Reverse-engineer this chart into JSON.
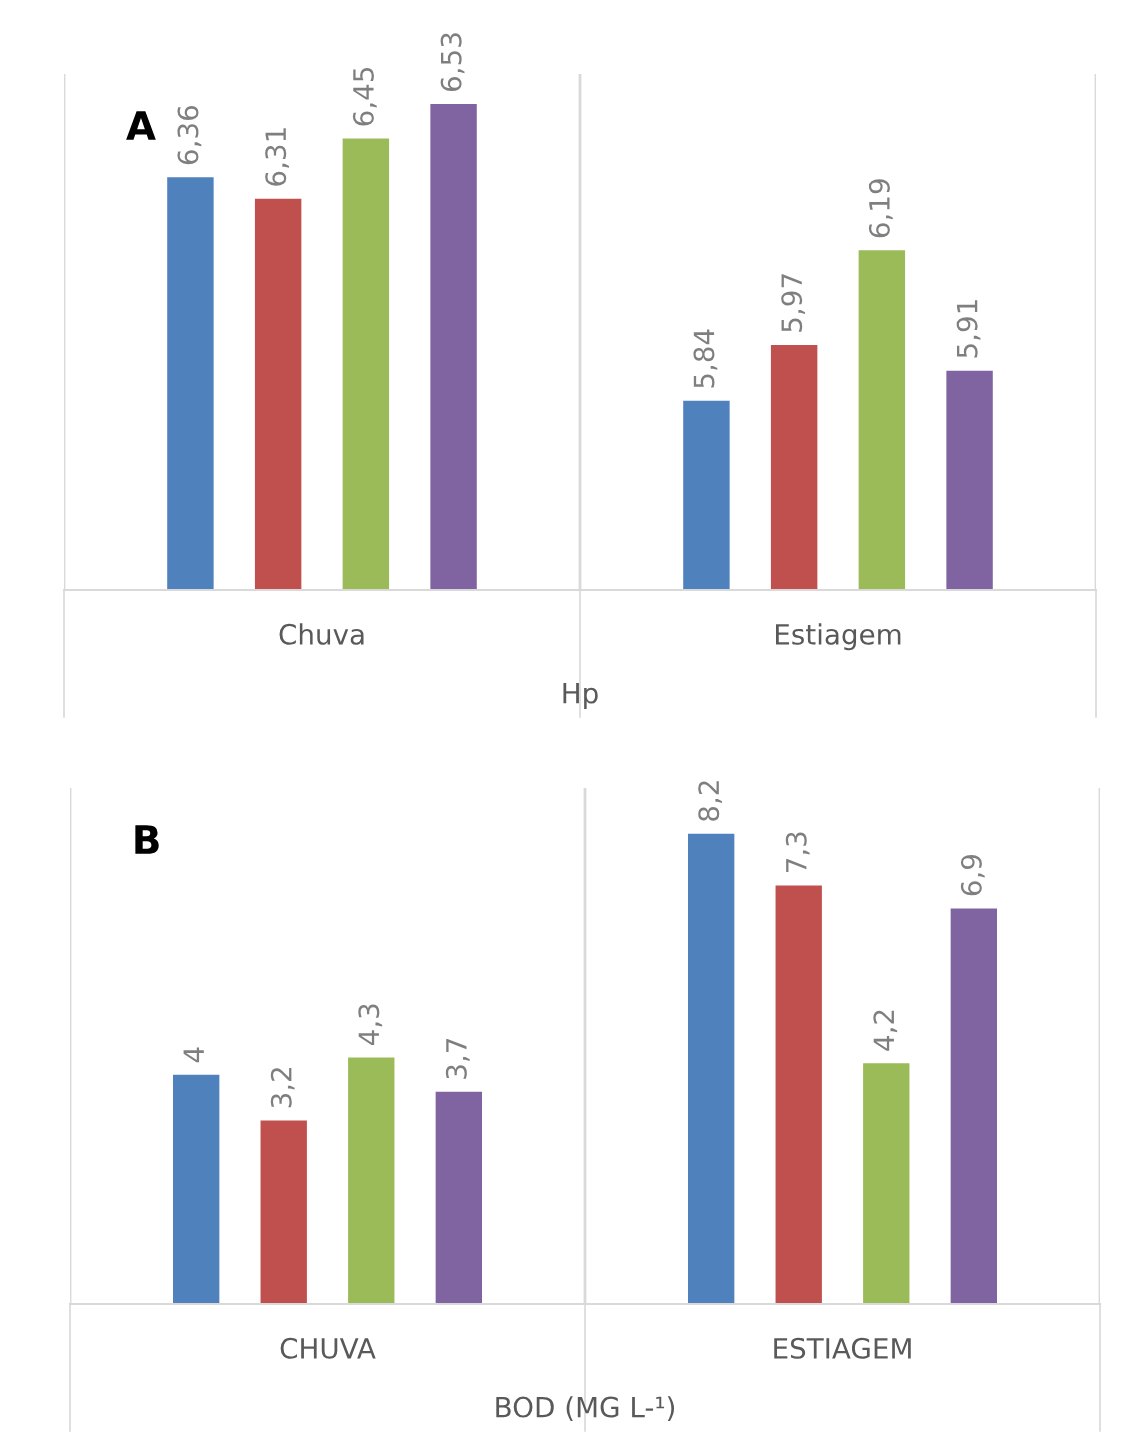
{
  "chart_data": [
    {
      "type": "bar",
      "xlabel": "Hp",
      "annotations": [
        "A"
      ],
      "categories": [
        "Chuva",
        "Estiagem"
      ],
      "ylim": [
        5.4,
        6.6
      ],
      "tick_labels": "x",
      "grid": "x",
      "series": [
        {
          "color": "#4f81bd",
          "values": [
            6.36,
            5.84
          ],
          "value_labels": [
            "6,36",
            "5,84"
          ]
        },
        {
          "color": "#c0504d",
          "values": [
            6.31,
            5.97
          ],
          "value_labels": [
            "6,31",
            "5,97"
          ]
        },
        {
          "color": "#9bbb59",
          "values": [
            6.45,
            6.19
          ],
          "value_labels": [
            "6,45",
            "6,19"
          ]
        },
        {
          "color": "#8064a2",
          "values": [
            6.53,
            5.91
          ],
          "value_labels": [
            "6,53",
            "5,91"
          ]
        }
      ]
    },
    {
      "type": "bar",
      "xlabel": "BOD (MG L-¹)",
      "annotations": [
        "B"
      ],
      "categories": [
        "CHUVA",
        "ESTIAGEM"
      ],
      "ylim": [
        0,
        9
      ],
      "tick_labels": "x",
      "grid": "x",
      "series": [
        {
          "color": "#4f81bd",
          "values": [
            4,
            8.2
          ],
          "value_labels": [
            "4",
            "8,2"
          ]
        },
        {
          "color": "#c0504d",
          "values": [
            3.2,
            7.3
          ],
          "value_labels": [
            "3,2",
            "7,3"
          ]
        },
        {
          "color": "#9bbb59",
          "values": [
            4.3,
            4.2
          ],
          "value_labels": [
            "4,3",
            "4,2"
          ]
        },
        {
          "color": "#8064a2",
          "values": [
            3.7,
            6.9
          ],
          "value_labels": [
            "3,7",
            "6,9"
          ]
        }
      ]
    }
  ]
}
